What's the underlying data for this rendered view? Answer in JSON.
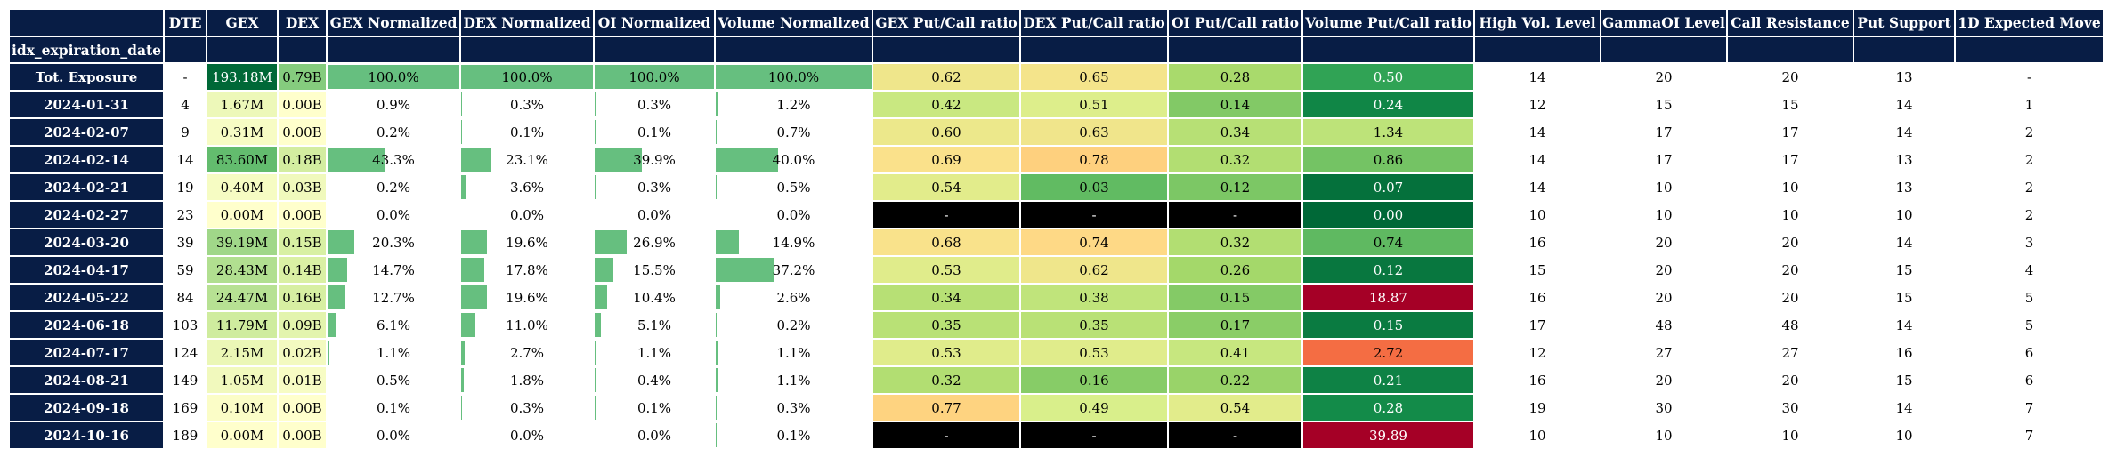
{
  "columns": [
    "",
    "DTE",
    "GEX",
    "DEX",
    "GEX Normalized",
    "DEX Normalized",
    "OI Normalized",
    "Volume Normalized",
    "GEX Put/Call ratio",
    "DEX Put/Call ratio",
    "OI Put/Call ratio",
    "Volume Put/Call ratio",
    "High Vol. Level",
    "GammaOI Level",
    "Call Resistance",
    "Put Support",
    "1D Expected Move"
  ],
  "index_name": "idx_expiration_date",
  "rows": [
    {
      "date": "Tot. Exposure",
      "dte": "-",
      "gex": "193.18M",
      "dex": "0.79B",
      "gex_norm": "100.0%",
      "dex_norm": "100.0%",
      "oi_norm": "100.0%",
      "vol_norm": "100.0%",
      "gex_pc": "0.62",
      "dex_pc": "0.65",
      "oi_pc": "0.28",
      "vol_pc": "0.50",
      "hvl": "14",
      "goi": "20",
      "cr": "20",
      "ps": "13",
      "em": "-"
    },
    {
      "date": "2024-01-31",
      "dte": "4",
      "gex": "1.67M",
      "dex": "0.00B",
      "gex_norm": "0.9%",
      "dex_norm": "0.3%",
      "oi_norm": "0.3%",
      "vol_norm": "1.2%",
      "gex_pc": "0.42",
      "dex_pc": "0.51",
      "oi_pc": "0.14",
      "vol_pc": "0.24",
      "hvl": "12",
      "goi": "15",
      "cr": "15",
      "ps": "14",
      "em": "1"
    },
    {
      "date": "2024-02-07",
      "dte": "9",
      "gex": "0.31M",
      "dex": "0.00B",
      "gex_norm": "0.2%",
      "dex_norm": "0.1%",
      "oi_norm": "0.1%",
      "vol_norm": "0.7%",
      "gex_pc": "0.60",
      "dex_pc": "0.63",
      "oi_pc": "0.34",
      "vol_pc": "1.34",
      "hvl": "14",
      "goi": "17",
      "cr": "17",
      "ps": "14",
      "em": "2"
    },
    {
      "date": "2024-02-14",
      "dte": "14",
      "gex": "83.60M",
      "dex": "0.18B",
      "gex_norm": "43.3%",
      "dex_norm": "23.1%",
      "oi_norm": "39.9%",
      "vol_norm": "40.0%",
      "gex_pc": "0.69",
      "dex_pc": "0.78",
      "oi_pc": "0.32",
      "vol_pc": "0.86",
      "hvl": "14",
      "goi": "17",
      "cr": "17",
      "ps": "13",
      "em": "2"
    },
    {
      "date": "2024-02-21",
      "dte": "19",
      "gex": "0.40M",
      "dex": "0.03B",
      "gex_norm": "0.2%",
      "dex_norm": "3.6%",
      "oi_norm": "0.3%",
      "vol_norm": "0.5%",
      "gex_pc": "0.54",
      "dex_pc": "0.03",
      "oi_pc": "0.12",
      "vol_pc": "0.07",
      "hvl": "14",
      "goi": "10",
      "cr": "10",
      "ps": "13",
      "em": "2"
    },
    {
      "date": "2024-02-27",
      "dte": "23",
      "gex": "0.00M",
      "dex": "0.00B",
      "gex_norm": "0.0%",
      "dex_norm": "0.0%",
      "oi_norm": "0.0%",
      "vol_norm": "0.0%",
      "gex_pc": "-",
      "dex_pc": "-",
      "oi_pc": "-",
      "vol_pc": "0.00",
      "hvl": "10",
      "goi": "10",
      "cr": "10",
      "ps": "10",
      "em": "2"
    },
    {
      "date": "2024-03-20",
      "dte": "39",
      "gex": "39.19M",
      "dex": "0.15B",
      "gex_norm": "20.3%",
      "dex_norm": "19.6%",
      "oi_norm": "26.9%",
      "vol_norm": "14.9%",
      "gex_pc": "0.68",
      "dex_pc": "0.74",
      "oi_pc": "0.32",
      "vol_pc": "0.74",
      "hvl": "16",
      "goi": "20",
      "cr": "20",
      "ps": "14",
      "em": "3"
    },
    {
      "date": "2024-04-17",
      "dte": "59",
      "gex": "28.43M",
      "dex": "0.14B",
      "gex_norm": "14.7%",
      "dex_norm": "17.8%",
      "oi_norm": "15.5%",
      "vol_norm": "37.2%",
      "gex_pc": "0.53",
      "dex_pc": "0.62",
      "oi_pc": "0.26",
      "vol_pc": "0.12",
      "hvl": "15",
      "goi": "20",
      "cr": "20",
      "ps": "15",
      "em": "4"
    },
    {
      "date": "2024-05-22",
      "dte": "84",
      "gex": "24.47M",
      "dex": "0.16B",
      "gex_norm": "12.7%",
      "dex_norm": "19.6%",
      "oi_norm": "10.4%",
      "vol_norm": "2.6%",
      "gex_pc": "0.34",
      "dex_pc": "0.38",
      "oi_pc": "0.15",
      "vol_pc": "18.87",
      "hvl": "16",
      "goi": "20",
      "cr": "20",
      "ps": "15",
      "em": "5"
    },
    {
      "date": "2024-06-18",
      "dte": "103",
      "gex": "11.79M",
      "dex": "0.09B",
      "gex_norm": "6.1%",
      "dex_norm": "11.0%",
      "oi_norm": "5.1%",
      "vol_norm": "0.2%",
      "gex_pc": "0.35",
      "dex_pc": "0.35",
      "oi_pc": "0.17",
      "vol_pc": "0.15",
      "hvl": "17",
      "goi": "48",
      "cr": "48",
      "ps": "14",
      "em": "5"
    },
    {
      "date": "2024-07-17",
      "dte": "124",
      "gex": "2.15M",
      "dex": "0.02B",
      "gex_norm": "1.1%",
      "dex_norm": "2.7%",
      "oi_norm": "1.1%",
      "vol_norm": "1.1%",
      "gex_pc": "0.53",
      "dex_pc": "0.53",
      "oi_pc": "0.41",
      "vol_pc": "2.72",
      "hvl": "12",
      "goi": "27",
      "cr": "27",
      "ps": "16",
      "em": "6"
    },
    {
      "date": "2024-08-21",
      "dte": "149",
      "gex": "1.05M",
      "dex": "0.01B",
      "gex_norm": "0.5%",
      "dex_norm": "1.8%",
      "oi_norm": "0.4%",
      "vol_norm": "1.1%",
      "gex_pc": "0.32",
      "dex_pc": "0.16",
      "oi_pc": "0.22",
      "vol_pc": "0.21",
      "hvl": "16",
      "goi": "20",
      "cr": "20",
      "ps": "15",
      "em": "6"
    },
    {
      "date": "2024-09-18",
      "dte": "169",
      "gex": "0.10M",
      "dex": "0.00B",
      "gex_norm": "0.1%",
      "dex_norm": "0.3%",
      "oi_norm": "0.1%",
      "vol_norm": "0.3%",
      "gex_pc": "0.77",
      "dex_pc": "0.49",
      "oi_pc": "0.54",
      "vol_pc": "0.28",
      "hvl": "19",
      "goi": "30",
      "cr": "30",
      "ps": "14",
      "em": "7"
    },
    {
      "date": "2024-10-16",
      "dte": "189",
      "gex": "0.00M",
      "dex": "0.00B",
      "gex_norm": "0.0%",
      "dex_norm": "0.0%",
      "oi_norm": "0.0%",
      "vol_norm": "0.1%",
      "gex_pc": "-",
      "dex_pc": "-",
      "oi_pc": "-",
      "vol_pc": "39.89",
      "hvl": "10",
      "goi": "10",
      "cr": "10",
      "ps": "10",
      "em": "7"
    }
  ],
  "colors": {
    "header_bg": "#081d45",
    "bar_fill": "#66bf7f",
    "missing_bg": "#000000"
  }
}
